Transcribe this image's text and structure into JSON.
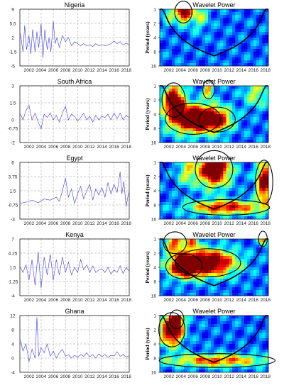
{
  "colors": {
    "series_line": "#3a3adf",
    "grid": "#9a9a9a",
    "axis": "#000000",
    "cone": "#000000",
    "wavelet_colormap": [
      "#00008f",
      "#0000ff",
      "#007fff",
      "#00ffff",
      "#7fff7f",
      "#ffff00",
      "#ff7f00",
      "#ff0000",
      "#7f0000"
    ]
  },
  "chart_data": [
    {
      "type": "line",
      "title": "Nigeria",
      "x_ticks": [
        "2002",
        "2004",
        "2006",
        "2008",
        "2010",
        "2012",
        "2014",
        "2016",
        "2018"
      ],
      "xlim": [
        2000.5,
        2018.5
      ],
      "y_ticks": [
        "9",
        "5.5",
        "2",
        "-1.5",
        "-5"
      ],
      "ylim": [
        -5,
        9
      ],
      "grid": true,
      "series": [
        {
          "x": [
            2000.6,
            2001.0,
            2001.3,
            2001.6,
            2002.0,
            2002.3,
            2002.6,
            2003.0,
            2003.3,
            2003.6,
            2004.0,
            2004.3,
            2004.6,
            2005.0,
            2005.3,
            2005.6,
            2006.0,
            2006.3,
            2006.6,
            2007.0,
            2007.5,
            2008.0,
            2008.5,
            2009.0,
            2009.5,
            2010.0,
            2010.5,
            2011.0,
            2011.5,
            2012.0,
            2012.5,
            2013.0,
            2013.5,
            2014.0,
            2014.5,
            2015.0,
            2015.5,
            2016.0,
            2016.5,
            2017.0,
            2017.5,
            2018.0,
            2018.4
          ],
          "values": [
            3.0,
            -1.5,
            5.0,
            -1.0,
            2.5,
            -2.0,
            4.0,
            -1.5,
            3.5,
            -0.5,
            5.5,
            -3.0,
            4.0,
            -1.0,
            2.0,
            -1.5,
            6.0,
            0.5,
            2.0,
            -0.5,
            2.5,
            1.0,
            2.0,
            0.0,
            1.0,
            0.5,
            0.0,
            0.5,
            0.0,
            0.2,
            -0.2,
            0.5,
            0.0,
            0.3,
            0.0,
            0.2,
            0.5,
            1.2,
            0.5,
            1.0,
            0.2,
            0.6,
            0.3
          ]
        }
      ]
    },
    {
      "type": "heatmap",
      "title": "Wavelet Power",
      "ylabel": "Period (years)",
      "x_ticks": [
        "2002",
        "2004",
        "2006",
        "2008",
        "2010",
        "2012",
        "2014",
        "2016",
        "2018"
      ],
      "xlim": [
        2000.5,
        2018.5
      ],
      "y_ticks": [
        "1",
        "2",
        "4",
        "8",
        "16"
      ],
      "y_scale": "log2",
      "ylim": [
        1,
        16
      ],
      "colormap": "jet",
      "hotspots": [
        {
          "t": 2004.4,
          "period": 1.15,
          "dt": 1.2,
          "dp": 0.35,
          "level": 0.9
        },
        {
          "t": 2007.0,
          "period": 1.3,
          "dt": 1.5,
          "dp": 0.5,
          "level": 0.35
        },
        {
          "t": 2002.0,
          "period": 1.2,
          "dt": 1.0,
          "dp": 0.4,
          "level": 0.3
        }
      ],
      "cone_min_period": 14
    },
    {
      "type": "line",
      "title": "South Africa",
      "x_ticks": [
        "2002",
        "2004",
        "2006",
        "2008",
        "2010",
        "2012",
        "2014",
        "2016",
        "2018"
      ],
      "xlim": [
        2000.5,
        2018.5
      ],
      "y_ticks": [
        "3",
        "1.5",
        "0",
        "-0.75",
        "-2"
      ],
      "ylim": [
        -2,
        3
      ],
      "grid": true,
      "series": [
        {
          "x": [
            2000.6,
            2001.0,
            2001.5,
            2002.0,
            2002.5,
            2003.0,
            2003.5,
            2004.0,
            2004.5,
            2005.0,
            2005.5,
            2006.0,
            2006.5,
            2007.0,
            2007.5,
            2008.0,
            2008.5,
            2009.0,
            2009.5,
            2010.0,
            2010.5,
            2011.0,
            2011.5,
            2012.0,
            2012.5,
            2013.0,
            2013.5,
            2014.0,
            2014.5,
            2015.0,
            2015.5,
            2016.0,
            2016.5,
            2017.0,
            2017.5,
            2018.0,
            2018.4
          ],
          "values": [
            0.5,
            0.0,
            0.8,
            1.3,
            0.0,
            0.6,
            -0.2,
            -0.8,
            0.5,
            0.2,
            0.6,
            0.0,
            0.4,
            -0.2,
            0.6,
            1.2,
            0.0,
            0.5,
            0.3,
            -0.1,
            0.2,
            0.6,
            0.0,
            0.3,
            -0.2,
            0.4,
            0.0,
            0.3,
            0.2,
            0.5,
            0.0,
            0.6,
            0.1,
            0.6,
            0.0,
            0.4,
            0.2
          ]
        }
      ]
    },
    {
      "type": "heatmap",
      "title": "Wavelet Power",
      "ylabel": "Period (years)",
      "x_ticks": [
        "2002",
        "2004",
        "2006",
        "2008",
        "2010",
        "2012",
        "2014",
        "2016",
        "2018"
      ],
      "xlim": [
        2000.5,
        2018.5
      ],
      "y_ticks": [
        "1",
        "2",
        "4",
        "8",
        "16"
      ],
      "y_scale": "log2",
      "ylim": [
        1,
        16
      ],
      "colormap": "jet",
      "hotspots": [
        {
          "t": 2006.0,
          "period": 5.0,
          "dt": 3.8,
          "dp": 0.5,
          "level": 1.0
        },
        {
          "t": 2010.0,
          "period": 5.2,
          "dt": 2.5,
          "dp": 0.4,
          "level": 0.6
        },
        {
          "t": 2002.8,
          "period": 2.0,
          "dt": 1.6,
          "dp": 0.55,
          "level": 0.9
        },
        {
          "t": 2008.6,
          "period": 1.2,
          "dt": 0.8,
          "dp": 0.3,
          "level": 0.55
        },
        {
          "t": 2016.5,
          "period": 1.4,
          "dt": 2.0,
          "dp": 0.5,
          "level": 0.35
        }
      ],
      "cone_min_period": 14
    },
    {
      "type": "line",
      "title": "Egypt",
      "x_ticks": [
        "2002",
        "2004",
        "2006",
        "2008",
        "2010",
        "2012",
        "2014",
        "2016",
        "2018"
      ],
      "xlim": [
        2000.5,
        2018.5
      ],
      "y_ticks": [
        "6",
        "3.75",
        "1.5",
        "-0.75",
        "-3"
      ],
      "ylim": [
        -3,
        6
      ],
      "grid": true,
      "series": [
        {
          "x": [
            2000.6,
            2001.5,
            2002.5,
            2003.5,
            2004.5,
            2005.5,
            2006.5,
            2007.0,
            2007.5,
            2008.0,
            2008.5,
            2009.0,
            2009.5,
            2010.0,
            2010.5,
            2011.0,
            2011.5,
            2012.0,
            2012.5,
            2013.0,
            2013.5,
            2014.0,
            2014.5,
            2015.0,
            2015.5,
            2016.0,
            2016.5,
            2017.0,
            2017.3,
            2017.6,
            2018.0,
            2018.4
          ],
          "values": [
            -0.5,
            -0.3,
            0.0,
            -0.4,
            0.2,
            0.0,
            0.5,
            -0.2,
            1.5,
            3.5,
            0.5,
            1.8,
            -0.5,
            1.0,
            2.2,
            0.2,
            1.5,
            2.5,
            0.0,
            1.8,
            0.8,
            2.0,
            0.5,
            2.8,
            1.0,
            2.5,
            1.2,
            4.5,
            1.0,
            3.0,
            -1.0,
            1.2
          ]
        }
      ]
    },
    {
      "type": "heatmap",
      "title": "Wavelet Power",
      "ylabel": "Period (years)",
      "x_ticks": [
        "2002",
        "2004",
        "2006",
        "2008",
        "2010",
        "2012",
        "2014",
        "2016",
        "2018"
      ],
      "xlim": [
        2000.5,
        2018.5
      ],
      "y_ticks": [
        "1",
        "2",
        "4",
        "8",
        "16"
      ],
      "y_scale": "log2",
      "ylim": [
        1,
        16
      ],
      "colormap": "jet",
      "hotspots": [
        {
          "t": 2009.5,
          "period": 1.4,
          "dt": 2.6,
          "dp": 0.6,
          "level": 1.0
        },
        {
          "t": 2017.8,
          "period": 2.6,
          "dt": 1.2,
          "dp": 0.7,
          "level": 0.9
        },
        {
          "t": 2011.5,
          "period": 9.0,
          "dt": 6.0,
          "dp": 0.25,
          "level": 0.7
        },
        {
          "t": 2005.0,
          "period": 1.6,
          "dt": 1.5,
          "dp": 0.5,
          "level": 0.35
        }
      ],
      "cone_min_period": 14
    },
    {
      "type": "line",
      "title": "Kenya",
      "x_ticks": [
        "2002",
        "2004",
        "2006",
        "2008",
        "2010",
        "2012",
        "2014",
        "2016",
        "2018"
      ],
      "xlim": [
        2000.5,
        2018.5
      ],
      "y_ticks": [
        "7",
        "4.25",
        "1.5",
        "-1.25",
        "-4"
      ],
      "ylim": [
        -4,
        7
      ],
      "grid": true,
      "series": [
        {
          "x": [
            2000.6,
            2001.0,
            2001.5,
            2002.0,
            2002.5,
            2003.0,
            2003.5,
            2004.0,
            2004.5,
            2005.0,
            2005.5,
            2006.0,
            2006.5,
            2007.0,
            2007.5,
            2008.0,
            2008.5,
            2009.0,
            2009.5,
            2010.0,
            2010.5,
            2011.0,
            2011.5,
            2012.0,
            2012.5,
            2013.0,
            2013.5,
            2014.0,
            2014.5,
            2015.0,
            2015.5,
            2016.0,
            2016.5,
            2017.0,
            2017.5,
            2018.0,
            2018.4
          ],
          "values": [
            1.5,
            0.5,
            2.0,
            -1.0,
            3.0,
            -2.0,
            4.5,
            -2.5,
            3.5,
            0.0,
            4.0,
            -1.0,
            3.0,
            0.0,
            3.5,
            0.5,
            2.5,
            0.0,
            1.5,
            0.5,
            3.0,
            1.0,
            2.0,
            0.5,
            1.8,
            0.5,
            1.0,
            1.2,
            0.5,
            1.5,
            0.2,
            1.0,
            0.5,
            1.8,
            0.3,
            1.5,
            0.8
          ]
        }
      ]
    },
    {
      "type": "heatmap",
      "title": "Wavelet Power",
      "ylabel": "Period (years)",
      "x_ticks": [
        "2002",
        "2004",
        "2006",
        "2008",
        "2010",
        "2012",
        "2014",
        "2016",
        "2018"
      ],
      "xlim": [
        2000.5,
        2018.5
      ],
      "y_ticks": [
        "1",
        "2",
        "4",
        "8",
        "16"
      ],
      "y_scale": "log2",
      "ylim": [
        1,
        16
      ],
      "colormap": "jet",
      "hotspots": [
        {
          "t": 2008.5,
          "period": 3.2,
          "dt": 4.5,
          "dp": 0.45,
          "level": 1.0
        },
        {
          "t": 2004.5,
          "period": 3.8,
          "dt": 2.5,
          "dp": 0.4,
          "level": 0.8
        },
        {
          "t": 2003.0,
          "period": 1.2,
          "dt": 1.6,
          "dp": 0.35,
          "level": 0.6
        },
        {
          "t": 2006.0,
          "period": 1.1,
          "dt": 1.0,
          "dp": 0.3,
          "level": 0.5
        },
        {
          "t": 2017.6,
          "period": 1.0,
          "dt": 0.6,
          "dp": 0.25,
          "level": 0.6
        }
      ],
      "cone_min_period": 14
    },
    {
      "type": "line",
      "title": "Ghana",
      "x_ticks": [
        "2002",
        "2004",
        "2006",
        "2008",
        "2010",
        "2012",
        "2014",
        "2016",
        "2018"
      ],
      "xlim": [
        2000.5,
        2018.5
      ],
      "y_ticks": [
        "12",
        "8",
        "4",
        "0",
        "-4"
      ],
      "ylim": [
        -4,
        12
      ],
      "grid": true,
      "series": [
        {
          "x": [
            2000.6,
            2001.0,
            2001.5,
            2002.0,
            2002.5,
            2003.0,
            2003.3,
            2003.6,
            2004.0,
            2004.5,
            2005.0,
            2005.5,
            2006.0,
            2006.5,
            2007.0,
            2007.5,
            2008.0,
            2008.5,
            2009.0,
            2009.5,
            2010.0,
            2010.5,
            2011.0,
            2011.5,
            2012.0,
            2012.5,
            2013.0,
            2013.5,
            2014.0,
            2014.5,
            2015.0,
            2015.5,
            2016.0,
            2016.5,
            2017.0,
            2017.5,
            2018.0,
            2018.4
          ],
          "values": [
            5.0,
            2.0,
            4.0,
            -1.0,
            2.5,
            0.0,
            11.5,
            0.5,
            3.0,
            1.5,
            4.0,
            0.5,
            2.0,
            0.0,
            1.5,
            2.5,
            0.5,
            1.0,
            0.0,
            0.8,
            0.2,
            1.0,
            0.5,
            1.5,
            0.3,
            1.0,
            0.0,
            1.2,
            0.4,
            1.0,
            0.2,
            0.8,
            0.6,
            1.8,
            0.5,
            1.0,
            0.3,
            0.6
          ]
        }
      ]
    },
    {
      "type": "heatmap",
      "title": "Wavelet Power",
      "ylabel": "Period (years)",
      "x_ticks": [
        "2002",
        "2004",
        "2006",
        "2008",
        "2010",
        "2012",
        "2014",
        "2016",
        "2018"
      ],
      "xlim": [
        2000.5,
        2018.5
      ],
      "y_ticks": [
        "1",
        "2",
        "4",
        "8",
        "16"
      ],
      "y_scale": "log2",
      "ylim": [
        1,
        16
      ],
      "colormap": "jet",
      "hotspots": [
        {
          "t": 2002.5,
          "period": 2.0,
          "dt": 1.8,
          "dp": 0.55,
          "level": 1.0
        },
        {
          "t": 2003.3,
          "period": 1.2,
          "dt": 1.0,
          "dp": 0.3,
          "level": 0.6
        },
        {
          "t": 2010.0,
          "period": 9.0,
          "dt": 8.0,
          "dp": 0.22,
          "level": 0.6
        }
      ],
      "cone_min_period": 14
    }
  ]
}
